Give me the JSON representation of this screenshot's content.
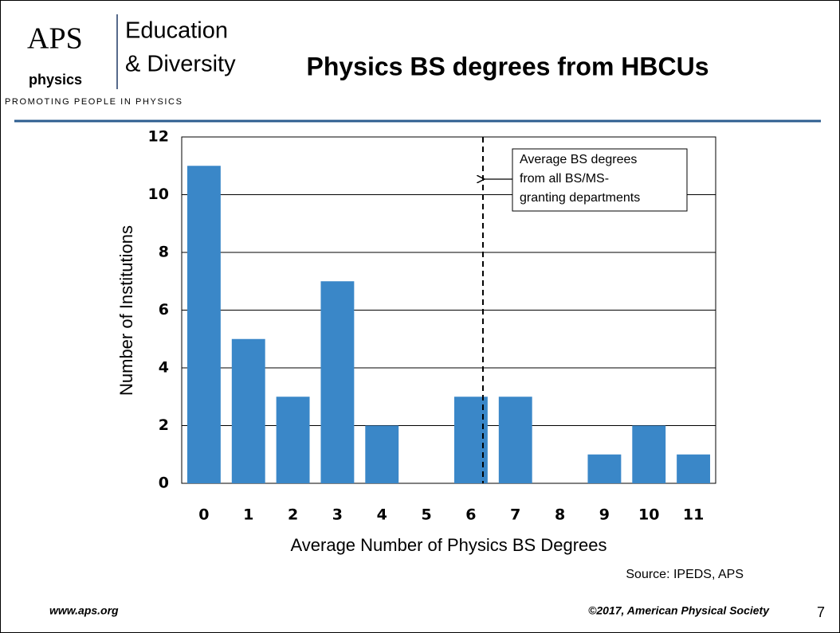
{
  "header": {
    "logo_top": "APS",
    "logo_bottom": "physics",
    "brand_line1": "Education",
    "brand_line2": "& Diversity",
    "tagline": "PROMOTING PEOPLE IN PHYSICS",
    "title": "Physics BS degrees from HBCUs"
  },
  "chart_data": {
    "type": "bar",
    "x_label": "Average Number of Physics BS Degrees",
    "y_label": "Number of Institutions",
    "categories": [
      "0",
      "1",
      "2",
      "3",
      "4",
      "5",
      "6",
      "7",
      "8",
      "9",
      "10",
      "11"
    ],
    "values": [
      11,
      5,
      3,
      7,
      2,
      0,
      3,
      3,
      0,
      1,
      2,
      1
    ],
    "color": "#3a87c8",
    "ylim": [
      0,
      12
    ],
    "yticks": [
      0,
      2,
      4,
      6,
      8,
      10,
      12
    ],
    "grid": true,
    "reference_line": {
      "x": 6.27,
      "label": [
        "Average BS degrees",
        "from all BS/MS-",
        "granting departments"
      ]
    },
    "source": "Source: IPEDS, APS"
  },
  "footer": {
    "url": "www.aps.org",
    "copyright": "©2017, American Physical Society",
    "page": "7"
  }
}
